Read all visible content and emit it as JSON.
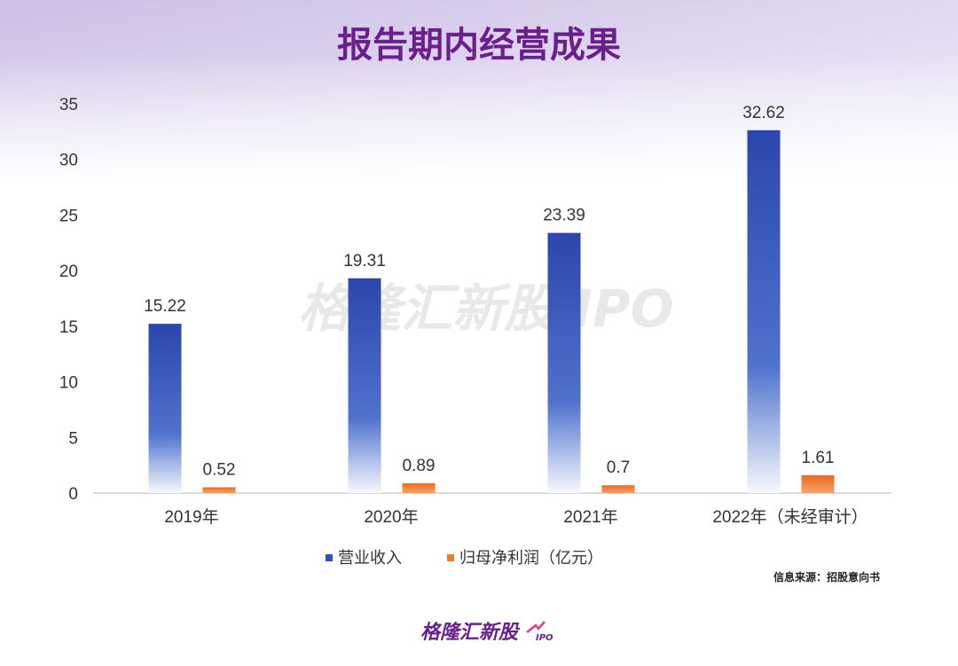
{
  "chart_data": {
    "type": "bar",
    "title": "报告期内经营成果",
    "categories": [
      "2019年",
      "2020年",
      "2021年",
      "2022年（未经审计）"
    ],
    "series": [
      {
        "name": "营业收入",
        "values": [
          15.22,
          19.31,
          23.39,
          32.62
        ],
        "color": "#2f4fb3"
      },
      {
        "name": "归母净利润（亿元）",
        "values": [
          0.52,
          0.89,
          0.7,
          1.61
        ],
        "color": "#ee7a2c"
      }
    ],
    "ylim": [
      0,
      35
    ],
    "yticks": [
      0,
      5,
      10,
      15,
      20,
      25,
      30,
      35
    ],
    "data_labels": [
      [
        "15.22",
        "19.31",
        "23.39",
        "32.62"
      ],
      [
        "0.52",
        "0.89",
        "0.7",
        "1.61"
      ]
    ],
    "grid": false,
    "legend_position": "bottom"
  },
  "source_note": "信息来源：招股意向书",
  "watermark": "格隆汇新股 IPO",
  "brand": {
    "name": "格隆汇新股",
    "suffix": "IPO"
  },
  "colors": {
    "title": "#6a1f8c",
    "header_gradient_start": "#d7cdea",
    "brand": "#6a1f8c",
    "accent": "#e23a8a"
  }
}
